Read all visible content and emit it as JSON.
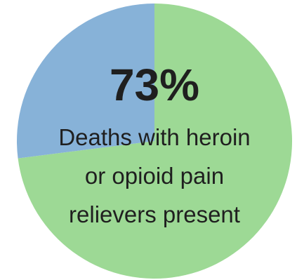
{
  "chart_data": {
    "type": "pie",
    "slices": [
      {
        "label": "Deaths with heroin or opioid pain relievers present",
        "value": 73,
        "color": "#9dd995"
      },
      {
        "label": "",
        "value": 27,
        "color": "#87b2d8"
      }
    ],
    "start_angle_deg": 0,
    "center_stat": "73%",
    "caption_lines": [
      "Deaths with heroin",
      "or opioid pain",
      "relievers present"
    ]
  }
}
